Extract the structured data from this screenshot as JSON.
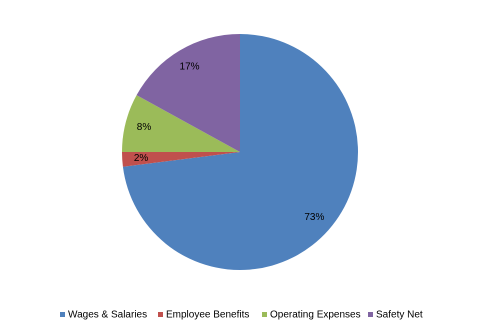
{
  "chart_data": {
    "type": "pie",
    "categories": [
      "Wages & Salaries",
      "Employee Benefits",
      "Operating Expenses",
      "Safety Net"
    ],
    "values": [
      73,
      2,
      8,
      17
    ],
    "value_labels": [
      "73%",
      "2%",
      "8%",
      "17%"
    ],
    "colors": [
      "#4f81bd",
      "#c0504d",
      "#9bbb59",
      "#8064a2"
    ],
    "legend": "bottom"
  }
}
